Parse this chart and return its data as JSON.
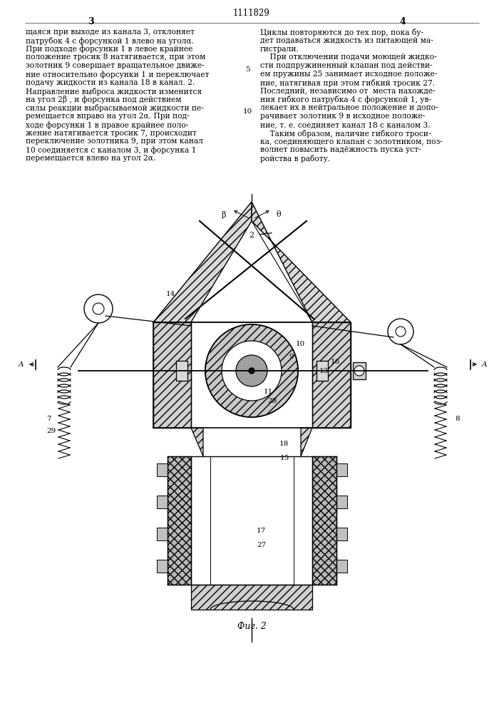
{
  "page_width": 7.07,
  "page_height": 10.0,
  "dpi": 100,
  "patent_number": "1111829",
  "page_left": "3",
  "page_right": "4",
  "left_col": [
    "щаяся при выходе из канала 3, отклоняет",
    "патрубок 4 с форсункой 1 влево на уголα.",
    "При подходе форсунки 1 в левое крайнее",
    "положение тросик 8 натягивается, при этом",
    "золотник 9 совершает вращательное движе-",
    "ние относительно форсунки 1 и переключает",
    "подачу жидкости из канала 18 в канал. 2.",
    "Направление выброса жидкости изменится",
    "на угол 2β , и форсунка под действием",
    "силы реакции выбрасываемой жидкости пе-",
    "ремещается вправо на угол 2α. При под-",
    "ходе форсунки 1 в правое крайнее поло-",
    "жение натягивается тросик 7, происходит",
    "переключение золотника 9, при этом канал",
    "10 соединяется с каналом 3, и форсунка 1",
    "перемещается влево на угол 2α."
  ],
  "right_col": [
    "Циклы повторяются до тех пор, пока бу-",
    "дет подаваться жидкость из питающей ма-",
    "гистрали.",
    "    При отключении подачи моющей жидко-",
    "сти подпружиненный клапан под действи-",
    "ем пружины 25 занимает исходное положе-",
    "ние, натягивая при этом гибкий тросик 27.",
    "Последний, независимо от  места нахожде-",
    "ния гибкого патрубка 4 с форсункой 1, ув-",
    "лекает их в нейтральное положение и допо-",
    "рачивает золотник 9 в исходное положе-",
    "ние, т. е. соединяет канал 18 с каналом 3.",
    "    Таким образом, наличие гибкого троси-",
    "ка, соединяющего клапан с золотником, поз-",
    "волнет повысить надёжность пуска уст-",
    "ройства в работу."
  ],
  "fig_label": "Фиг. 2",
  "bg": "#ffffff"
}
